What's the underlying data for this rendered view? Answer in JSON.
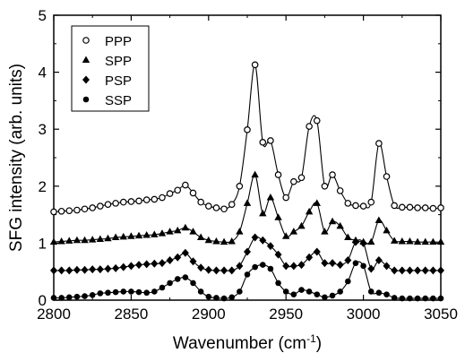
{
  "chart_data": {
    "type": "line",
    "xlabel": "Wavenumber (cm",
    "xlabel_sup": "-1",
    "xlabel_suffix": ")",
    "ylabel": "SFG intensity (arb. units)",
    "xlim": [
      2800,
      3050
    ],
    "ylim": [
      0,
      5
    ],
    "xticks": [
      2800,
      2850,
      2900,
      2950,
      3000,
      3050
    ],
    "yticks": [
      0,
      1,
      2,
      3,
      4,
      5
    ],
    "grid": false,
    "legend_position": "top-left",
    "series": [
      {
        "name": "PPP",
        "marker": "open-circle",
        "x": [
          2800,
          2805,
          2810,
          2815,
          2820,
          2825,
          2830,
          2835,
          2840,
          2845,
          2850,
          2855,
          2860,
          2865,
          2870,
          2875,
          2880,
          2885,
          2890,
          2895,
          2900,
          2905,
          2910,
          2915,
          2920,
          2925,
          2930,
          2935,
          2940,
          2945,
          2950,
          2955,
          2960,
          2965,
          2970,
          2975,
          2980,
          2985,
          2990,
          2995,
          3000,
          3005,
          3010,
          3015,
          3020,
          3025,
          3030,
          3035,
          3040,
          3045,
          3050
        ],
        "y": [
          1.55,
          1.56,
          1.57,
          1.58,
          1.6,
          1.62,
          1.65,
          1.68,
          1.7,
          1.72,
          1.73,
          1.74,
          1.76,
          1.77,
          1.8,
          1.87,
          1.93,
          2.02,
          1.88,
          1.72,
          1.65,
          1.62,
          1.6,
          1.68,
          2.0,
          2.99,
          4.13,
          2.77,
          2.8,
          2.2,
          1.8,
          2.08,
          2.15,
          3.05,
          3.15,
          2.0,
          2.2,
          1.92,
          1.7,
          1.66,
          1.65,
          1.72,
          2.75,
          2.17,
          1.66,
          1.63,
          1.63,
          1.62,
          1.62,
          1.61,
          1.62
        ]
      },
      {
        "name": "SPP",
        "marker": "filled-triangle",
        "x": [
          2800,
          2805,
          2810,
          2815,
          2820,
          2825,
          2830,
          2835,
          2840,
          2845,
          2850,
          2855,
          2860,
          2865,
          2870,
          2875,
          2880,
          2885,
          2890,
          2895,
          2900,
          2905,
          2910,
          2915,
          2920,
          2925,
          2930,
          2935,
          2940,
          2945,
          2950,
          2955,
          2960,
          2965,
          2970,
          2975,
          2980,
          2985,
          2990,
          2995,
          3000,
          3005,
          3010,
          3015,
          3020,
          3025,
          3030,
          3035,
          3040,
          3045,
          3050
        ],
        "y": [
          1.02,
          1.03,
          1.04,
          1.05,
          1.05,
          1.06,
          1.07,
          1.08,
          1.1,
          1.11,
          1.12,
          1.13,
          1.14,
          1.15,
          1.17,
          1.2,
          1.22,
          1.27,
          1.2,
          1.1,
          1.05,
          1.03,
          1.02,
          1.03,
          1.2,
          1.7,
          2.2,
          1.52,
          1.8,
          1.45,
          1.12,
          1.2,
          1.3,
          1.55,
          1.7,
          1.2,
          1.38,
          1.3,
          1.1,
          1.05,
          1.02,
          1.02,
          1.4,
          1.22,
          1.04,
          1.03,
          1.03,
          1.02,
          1.02,
          1.02,
          1.02
        ]
      },
      {
        "name": "PSP",
        "marker": "filled-diamond",
        "x": [
          2800,
          2805,
          2810,
          2815,
          2820,
          2825,
          2830,
          2835,
          2840,
          2845,
          2850,
          2855,
          2860,
          2865,
          2870,
          2875,
          2880,
          2885,
          2890,
          2895,
          2900,
          2905,
          2910,
          2915,
          2920,
          2925,
          2930,
          2935,
          2940,
          2945,
          2950,
          2955,
          2960,
          2965,
          2970,
          2975,
          2980,
          2985,
          2990,
          2995,
          3000,
          3005,
          3010,
          3015,
          3020,
          3025,
          3030,
          3035,
          3040,
          3045,
          3050
        ],
        "y": [
          0.52,
          0.52,
          0.52,
          0.53,
          0.53,
          0.54,
          0.54,
          0.55,
          0.56,
          0.58,
          0.6,
          0.62,
          0.63,
          0.64,
          0.65,
          0.7,
          0.75,
          0.83,
          0.68,
          0.57,
          0.53,
          0.52,
          0.52,
          0.52,
          0.6,
          0.85,
          1.1,
          1.05,
          0.95,
          0.8,
          0.6,
          0.6,
          0.62,
          0.75,
          0.85,
          0.65,
          0.65,
          0.62,
          0.7,
          1.02,
          1.0,
          0.55,
          0.7,
          0.6,
          0.52,
          0.52,
          0.52,
          0.52,
          0.52,
          0.52,
          0.52
        ]
      },
      {
        "name": "SSP",
        "marker": "filled-circle",
        "x": [
          2800,
          2805,
          2810,
          2815,
          2820,
          2825,
          2830,
          2835,
          2840,
          2845,
          2850,
          2855,
          2860,
          2865,
          2870,
          2875,
          2880,
          2885,
          2890,
          2895,
          2900,
          2905,
          2910,
          2915,
          2920,
          2925,
          2930,
          2935,
          2940,
          2945,
          2950,
          2955,
          2960,
          2965,
          2970,
          2975,
          2980,
          2985,
          2990,
          2995,
          3000,
          3005,
          3010,
          3015,
          3020,
          3025,
          3030,
          3035,
          3040,
          3045,
          3050
        ],
        "y": [
          0.04,
          0.04,
          0.05,
          0.06,
          0.07,
          0.09,
          0.12,
          0.13,
          0.14,
          0.15,
          0.15,
          0.14,
          0.13,
          0.15,
          0.22,
          0.3,
          0.37,
          0.4,
          0.3,
          0.15,
          0.06,
          0.04,
          0.03,
          0.05,
          0.15,
          0.45,
          0.58,
          0.62,
          0.55,
          0.3,
          0.15,
          0.1,
          0.18,
          0.15,
          0.1,
          0.05,
          0.08,
          0.15,
          0.33,
          0.65,
          0.6,
          0.15,
          0.13,
          0.1,
          0.04,
          0.03,
          0.03,
          0.03,
          0.03,
          0.03,
          0.03
        ]
      }
    ]
  }
}
